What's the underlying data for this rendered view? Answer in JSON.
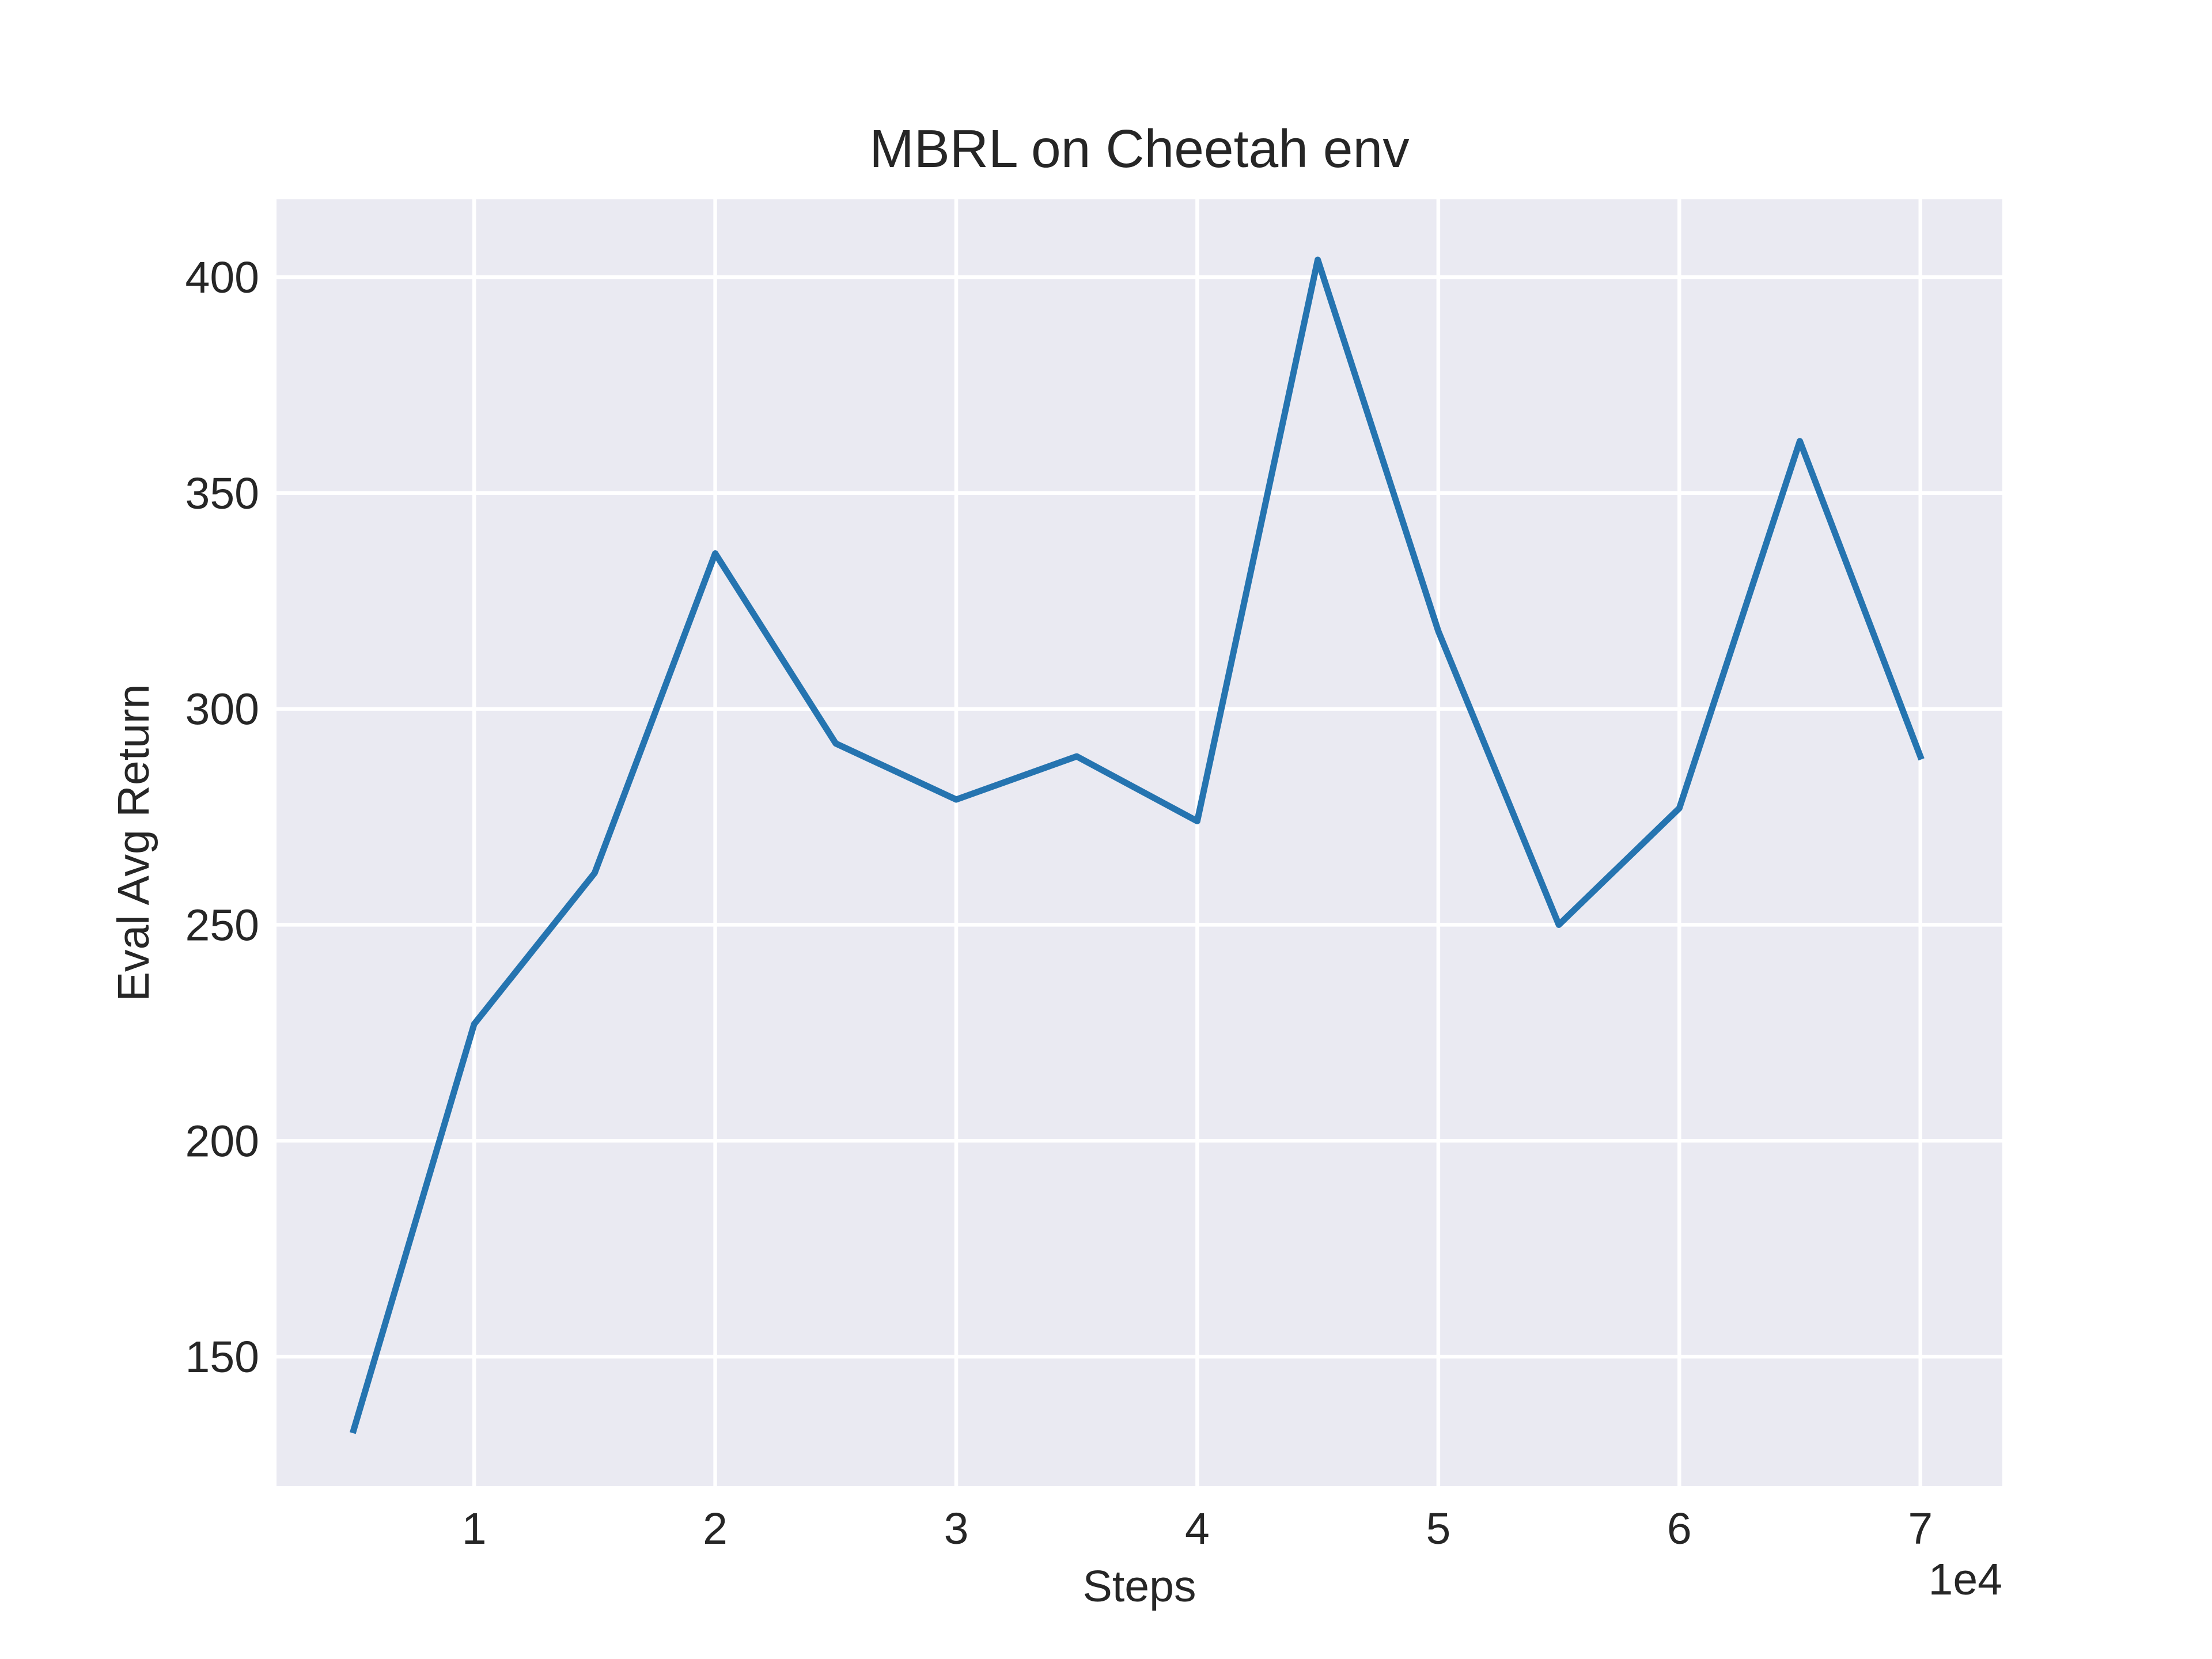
{
  "chart_data": {
    "type": "line",
    "title": "MBRL on Cheetah env",
    "xlabel": "Steps",
    "ylabel": "Eval Avg Return",
    "x_offset_label": "1e4",
    "x_ticks": [
      "1",
      "2",
      "3",
      "4",
      "5",
      "6",
      "7"
    ],
    "y_ticks": [
      "150",
      "200",
      "250",
      "300",
      "350",
      "400"
    ],
    "xlim": [
      0.18,
      7.34
    ],
    "ylim": [
      120,
      418
    ],
    "grid": true,
    "colors": {
      "plot_background": "#eaeaf2",
      "grid": "#ffffff",
      "line": "#2574b0"
    },
    "series": [
      {
        "x": [
          0.5,
          1.0,
          1.5,
          2.0,
          2.5,
          3.0,
          3.5,
          4.0,
          4.5,
          5.0,
          5.5,
          6.0,
          6.5,
          7.0
        ],
        "values": [
          133,
          227,
          262,
          336,
          292,
          279,
          289,
          274,
          404,
          318,
          250,
          277,
          362,
          289
        ]
      }
    ]
  }
}
